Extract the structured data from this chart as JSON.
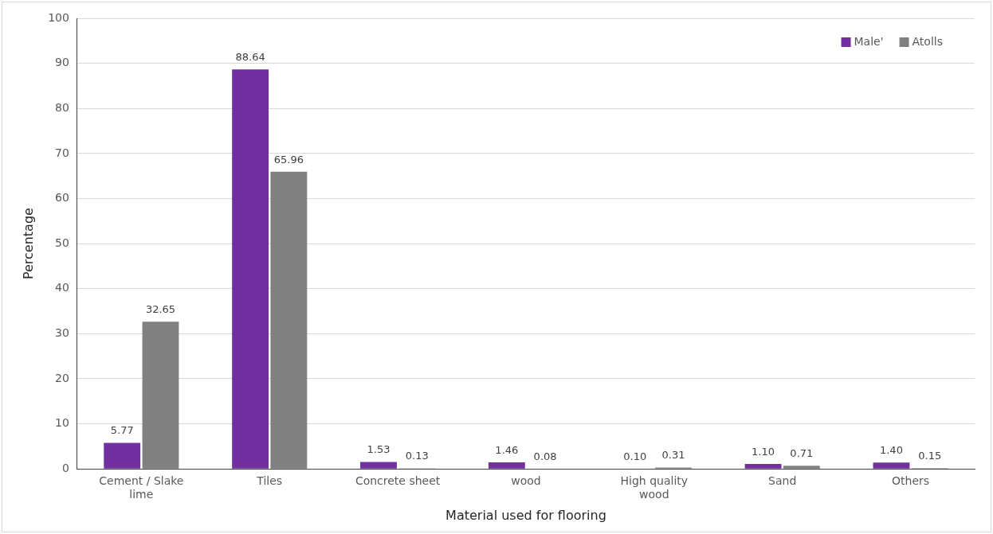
{
  "chart_data": {
    "type": "bar",
    "xlabel": "Material used for flooring",
    "ylabel": "Percentage",
    "categories": [
      "Cement / Slake lime",
      "Tiles",
      "Concrete sheet",
      "wood",
      "High quality wood",
      "Sand",
      "Others"
    ],
    "series": [
      {
        "name": "Male'",
        "color": "#7030a0",
        "values": [
          5.77,
          88.64,
          1.53,
          1.46,
          0.1,
          1.1,
          1.4
        ],
        "value_labels": [
          "5.77",
          "88.64",
          "1.53",
          "1.46",
          "0.10",
          "1.10",
          "1.40"
        ]
      },
      {
        "name": "Atolls",
        "color": "#808080",
        "values": [
          32.65,
          65.96,
          0.13,
          0.08,
          0.31,
          0.71,
          0.15
        ],
        "value_labels": [
          "32.65",
          "65.96",
          "0.13",
          "0.08",
          "0.31",
          "0.71",
          "0.15"
        ]
      }
    ],
    "ylim": [
      0,
      100
    ],
    "yticks": [
      0,
      10,
      20,
      30,
      40,
      50,
      60,
      70,
      80,
      90,
      100
    ],
    "grid": "y",
    "legend": "top right"
  }
}
